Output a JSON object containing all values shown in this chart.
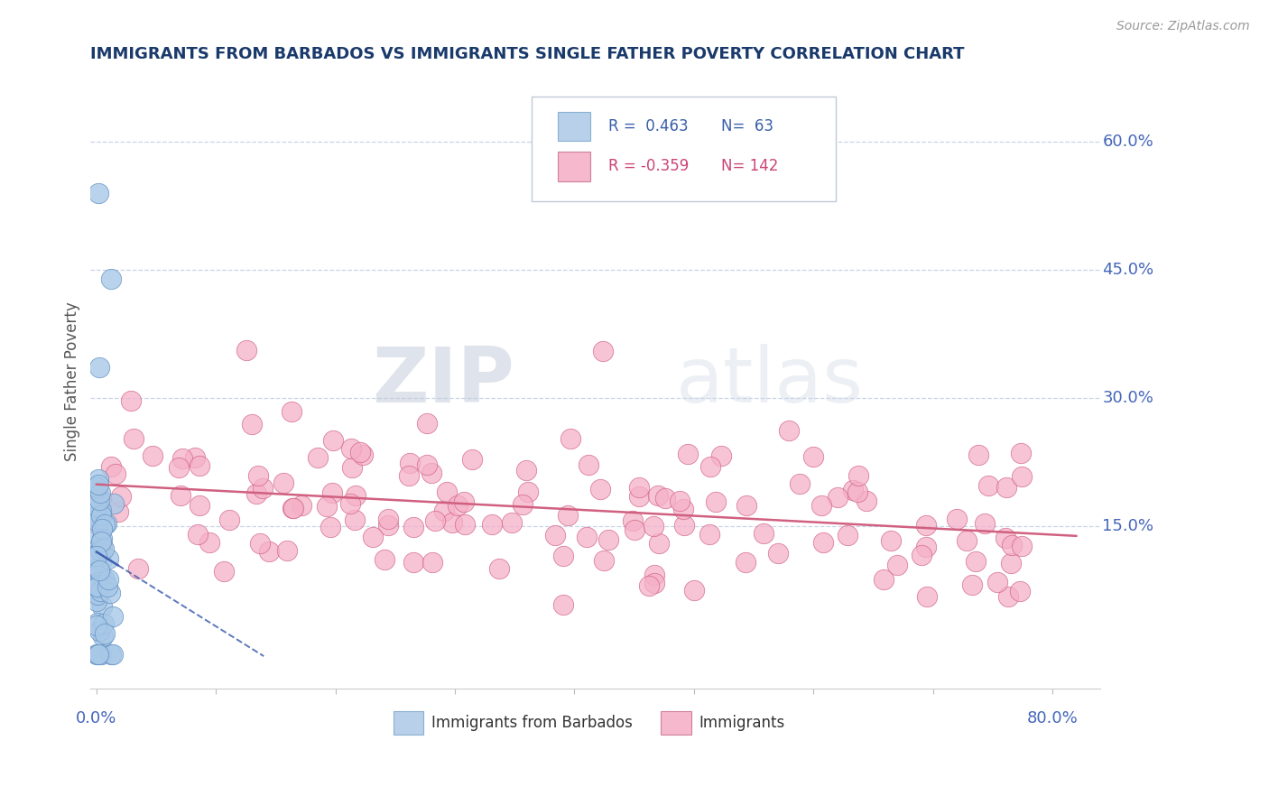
{
  "title": "IMMIGRANTS FROM BARBADOS VS IMMIGRANTS SINGLE FATHER POVERTY CORRELATION CHART",
  "source_text": "Source: ZipAtlas.com",
  "ylabel": "Single Father Poverty",
  "watermark_zip": "ZIP",
  "watermark_atlas": "atlas",
  "legend_entries": [
    {
      "label_r": "R =  0.463",
      "label_n": "N=  63",
      "color": "#b8d0ea",
      "text_color": "#3a5faa"
    },
    {
      "label_r": "R = -0.359",
      "label_n": "N= 142",
      "color": "#f5b8cc",
      "text_color": "#cc4477"
    }
  ],
  "series1_color": "#a8c8e8",
  "series1_edge": "#6090c0",
  "series2_color": "#f5b0c8",
  "series2_edge": "#d06080",
  "trendline1_color": "#4060b0",
  "trendline2_color": "#d06080",
  "right_ytick_labels": [
    "15.0%",
    "30.0%",
    "45.0%",
    "60.0%"
  ],
  "right_ytick_values": [
    0.15,
    0.3,
    0.45,
    0.6
  ],
  "right_ytick_color": "#4466bb",
  "xlim": [
    -0.005,
    0.84
  ],
  "ylim": [
    -0.04,
    0.68
  ],
  "background_color": "#ffffff",
  "grid_color": "#c8d4e8",
  "title_color": "#1a3a6b",
  "ylabel_color": "#555555",
  "series1_R": 0.463,
  "series1_N": 63,
  "series2_R": -0.359,
  "series2_N": 142,
  "seed1": 42,
  "seed2": 100
}
